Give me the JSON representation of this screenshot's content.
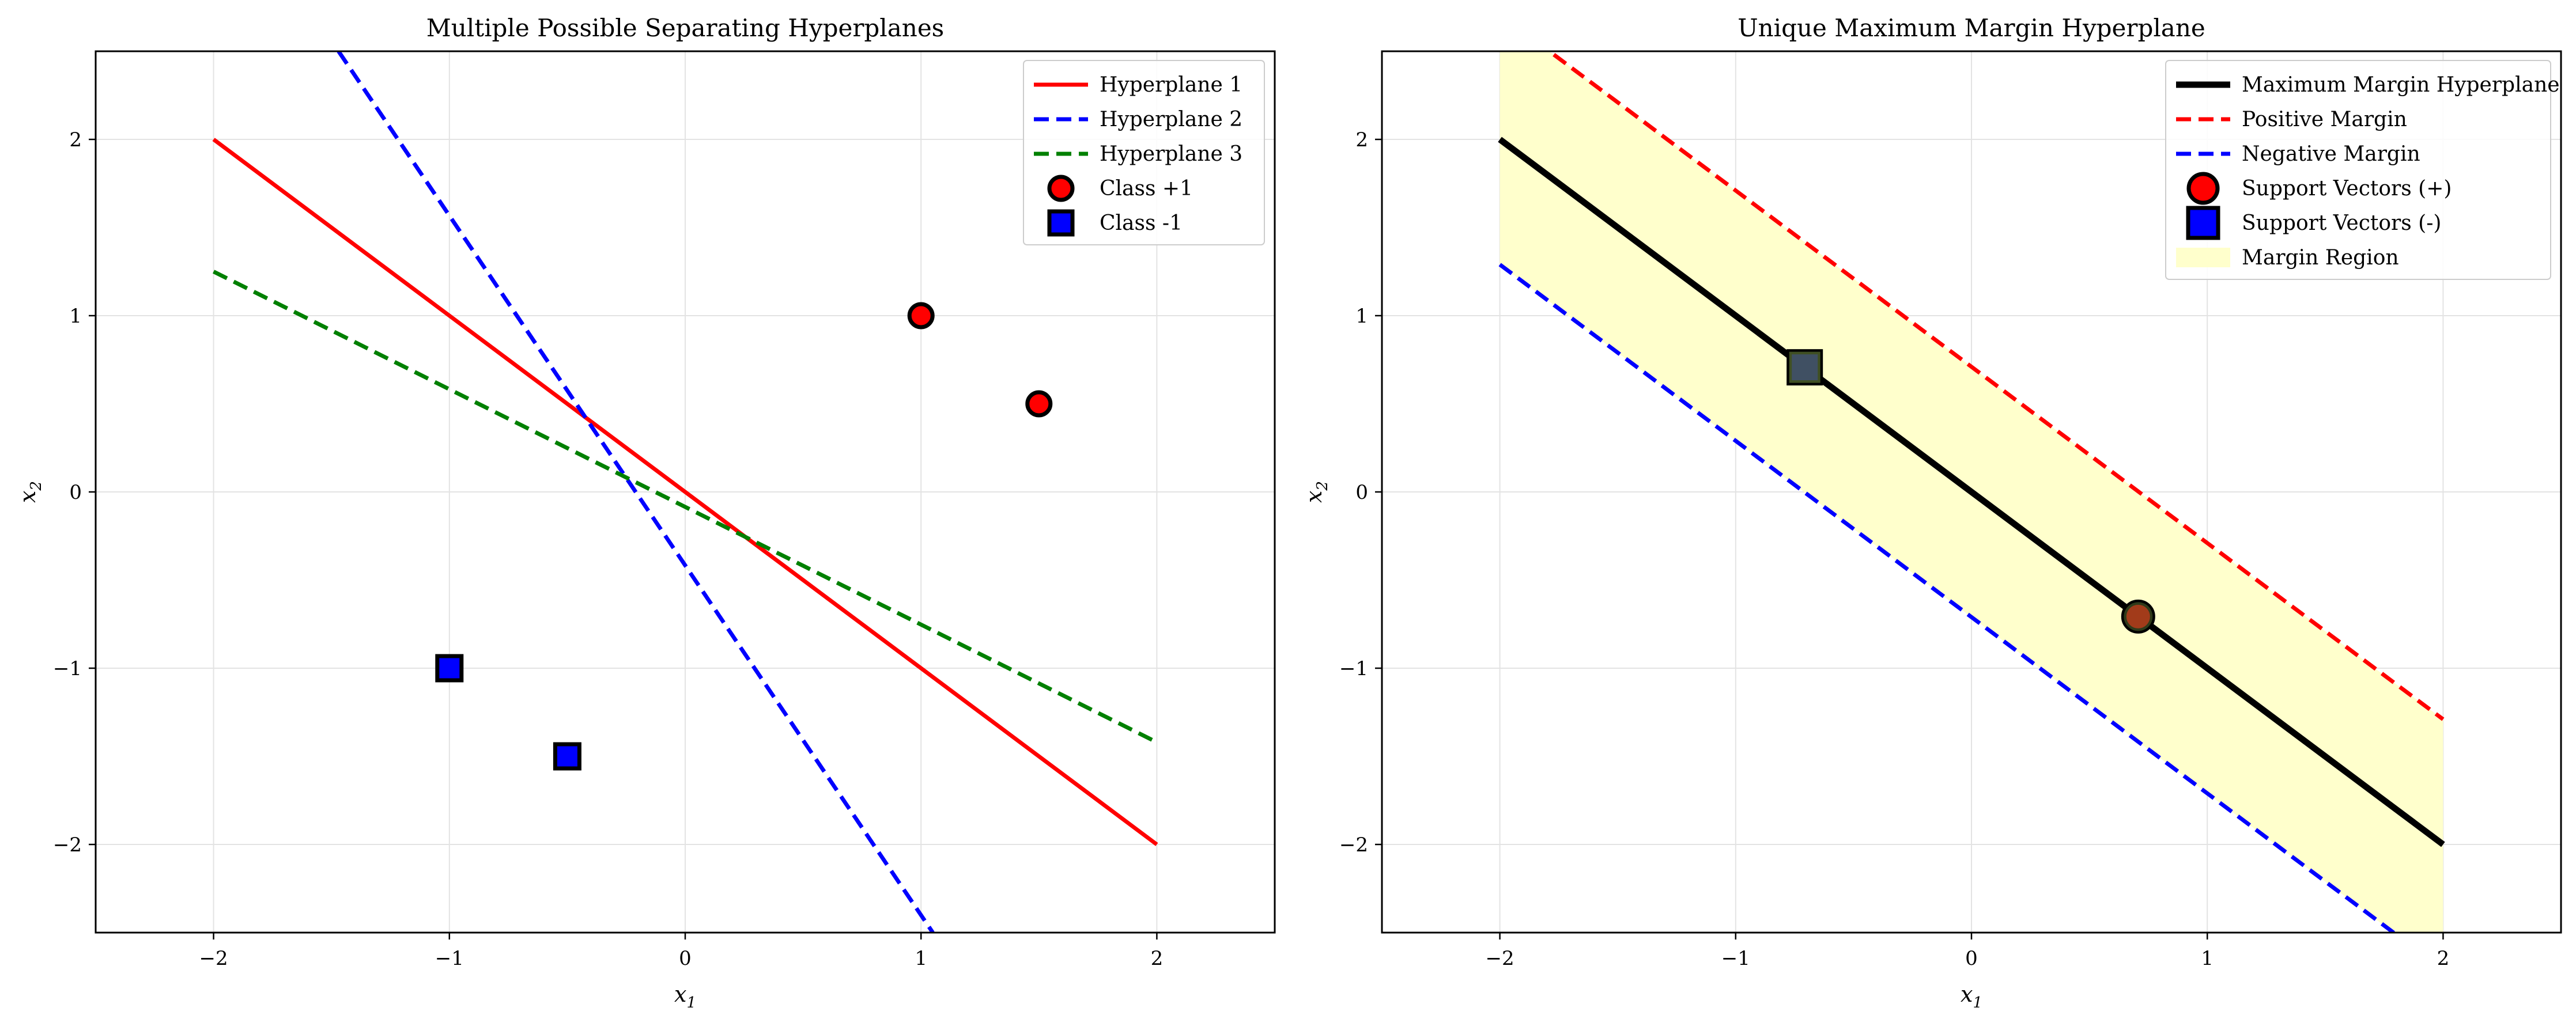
{
  "chart_data": [
    {
      "type": "line",
      "title": "Multiple Possible Separating Hyperplanes",
      "xlabel_base": "x",
      "xlabel_sub": "1",
      "ylabel_base": "x",
      "ylabel_sub": "2",
      "xlim": [
        -2.5,
        2.5
      ],
      "ylim": [
        -2.5,
        2.5
      ],
      "xticks": [
        -2,
        -1,
        0,
        1,
        2
      ],
      "yticks": [
        -2,
        -1,
        0,
        1,
        2
      ],
      "grid": true,
      "legend_position": "top-right",
      "series": [
        {
          "name": "Hyperplane 1",
          "kind": "line",
          "color": "#ff0000",
          "dash": "solid",
          "x": [
            -2,
            2
          ],
          "y": [
            2,
            -2
          ]
        },
        {
          "name": "Hyperplane 2",
          "kind": "line",
          "color": "#0000ff",
          "dash": "dashed",
          "x": [
            -1.47,
            1.05
          ],
          "y": [
            2.5,
            -2.5
          ]
        },
        {
          "name": "Hyperplane 3",
          "kind": "line",
          "color": "#008000",
          "dash": "dashed",
          "x": [
            -2,
            2
          ],
          "y": [
            1.25,
            -1.42
          ]
        },
        {
          "name": "Class +1",
          "kind": "scatter",
          "marker": "circle",
          "color": "#ff0000",
          "edge": "#000000",
          "x": [
            1,
            1.5
          ],
          "y": [
            1,
            0.5
          ]
        },
        {
          "name": "Class -1",
          "kind": "scatter",
          "marker": "square",
          "color": "#0000ff",
          "edge": "#000000",
          "x": [
            -1,
            -0.5
          ],
          "y": [
            -1,
            -1.5
          ]
        }
      ]
    },
    {
      "type": "line",
      "title": "Unique Maximum Margin Hyperplane",
      "xlabel_base": "x",
      "xlabel_sub": "1",
      "ylabel_base": "x",
      "ylabel_sub": "2",
      "xlim": [
        -2.5,
        2.5
      ],
      "ylim": [
        -2.5,
        2.5
      ],
      "xticks": [
        -2,
        -1,
        0,
        1,
        2
      ],
      "yticks": [
        -2,
        -1,
        0,
        1,
        2
      ],
      "grid": true,
      "legend_position": "top-right",
      "series": [
        {
          "name": "Maximum Margin Hyperplane",
          "kind": "line",
          "color": "#000000",
          "dash": "solid",
          "width": "thick",
          "x": [
            -2,
            2
          ],
          "y": [
            2,
            -2
          ]
        },
        {
          "name": "Positive Margin",
          "kind": "line",
          "color": "#ff0000",
          "dash": "dashed",
          "x": [
            -2,
            2
          ],
          "y": [
            2.71,
            -1.29
          ]
        },
        {
          "name": "Negative Margin",
          "kind": "line",
          "color": "#0000ff",
          "dash": "dashed",
          "x": [
            -2,
            2
          ],
          "y": [
            1.29,
            -2.71
          ]
        },
        {
          "name": "Support Vectors (+)",
          "kind": "scatter",
          "marker": "circle",
          "color": "#ff0000",
          "edge": "#000000",
          "x": [
            0.707
          ],
          "y": [
            -0.707
          ]
        },
        {
          "name": "Support Vectors (-)",
          "kind": "scatter",
          "marker": "square",
          "color": "#0000ff",
          "edge": "#000000",
          "x": [
            -0.707
          ],
          "y": [
            0.707
          ]
        },
        {
          "name": "Margin Region",
          "kind": "fill",
          "color": "#ffffcc",
          "x": [
            -2,
            2
          ],
          "upper": [
            2.71,
            -1.29
          ],
          "lower": [
            1.29,
            -2.71
          ]
        }
      ]
    }
  ]
}
